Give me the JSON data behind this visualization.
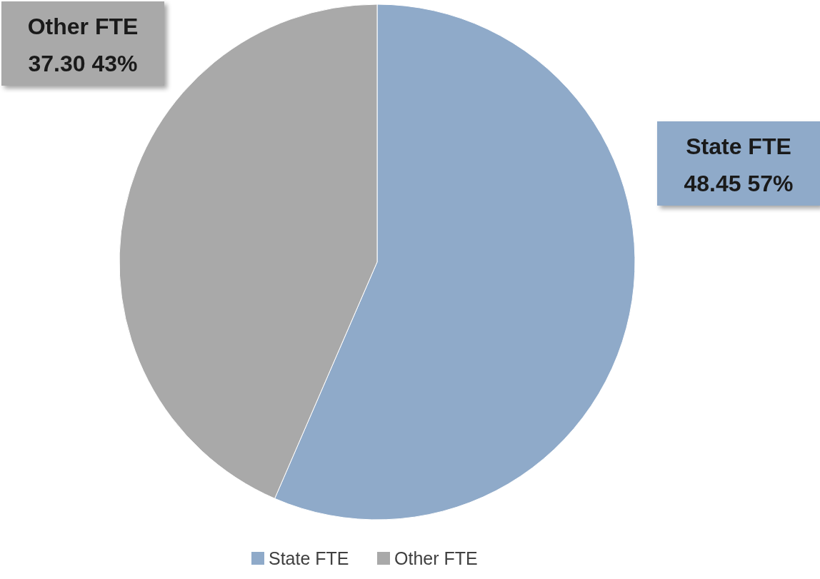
{
  "chart_data": {
    "type": "pie",
    "categories": [
      "State FTE",
      "Other FTE"
    ],
    "values": [
      48.45,
      37.3
    ],
    "colors": [
      "#8faac9",
      "#a9a9a9"
    ],
    "value_labels": [
      "48.45 57%",
      "37.30 43%"
    ],
    "legend": "bottom"
  }
}
